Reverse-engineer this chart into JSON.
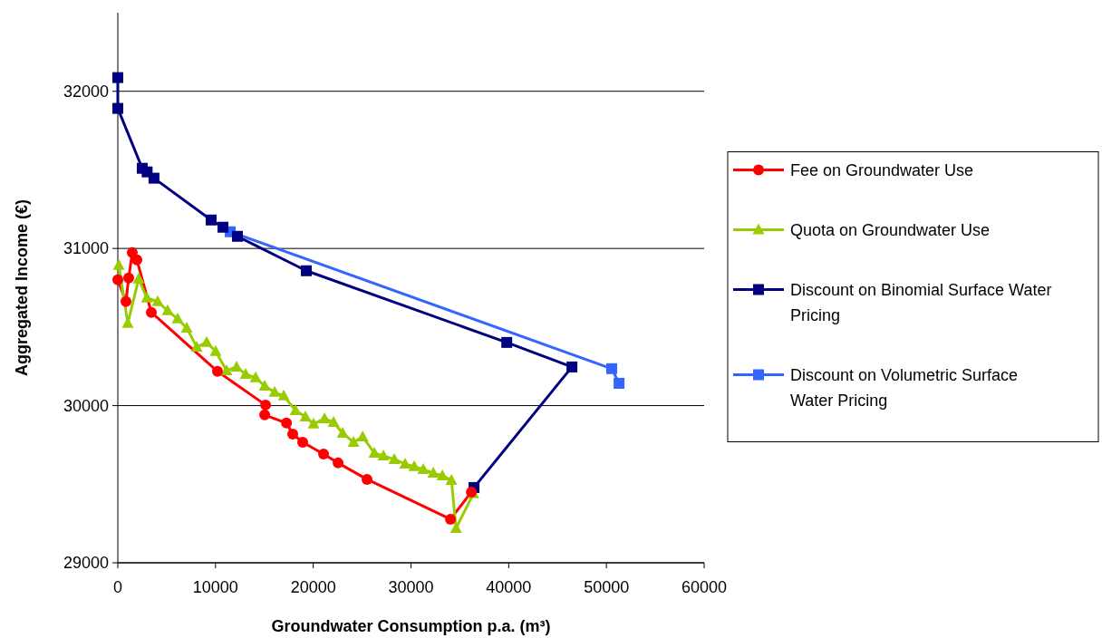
{
  "chart_data": {
    "type": "line",
    "xlabel": "Groundwater Consumption p.a. (m³)",
    "ylabel": "Aggregated Income (€)",
    "xlim": [
      0,
      60000
    ],
    "xticks": [
      0,
      10000,
      20000,
      30000,
      40000,
      50000,
      60000
    ],
    "ylim": [
      29000,
      32500
    ],
    "yticks": [
      29000,
      30000,
      31000,
      32000
    ],
    "grid": "y",
    "legend": "right",
    "line_style": "solid",
    "series": [
      {
        "name": "Fee on Groundwater Use",
        "color": "#ff0000",
        "marker": "circle",
        "x": [
          0,
          835,
          1110,
          1480,
          1950,
          3430,
          10200,
          15120,
          15030,
          17260,
          17900,
          18920,
          21050,
          22540,
          25500,
          34040,
          36180
        ],
        "values": [
          30800,
          30662,
          30812,
          30973,
          30927,
          30593,
          30218,
          30004,
          29941,
          29889,
          29819,
          29767,
          29692,
          29635,
          29531,
          29277,
          29450
        ]
      },
      {
        "name": "Quota on Groundwater Use",
        "color": "#99cc00",
        "marker": "triangle",
        "x": [
          100,
          1020,
          2130,
          2970,
          4080,
          5100,
          6120,
          7050,
          8070,
          9090,
          10010,
          11130,
          12150,
          13080,
          14100,
          15030,
          16050,
          16980,
          18180,
          19200,
          20030,
          21150,
          22080,
          23010,
          24120,
          25050,
          26250,
          27180,
          28290,
          29400,
          30330,
          31260,
          32280,
          33210,
          34140,
          34610,
          36380
        ],
        "values": [
          30893,
          30523,
          30806,
          30685,
          30662,
          30604,
          30552,
          30494,
          30373,
          30402,
          30345,
          30223,
          30246,
          30200,
          30177,
          30125,
          30085,
          30062,
          29969,
          29929,
          29883,
          29917,
          29894,
          29825,
          29767,
          29802,
          29698,
          29681,
          29658,
          29629,
          29612,
          29594,
          29571,
          29554,
          29525,
          29219,
          29439
        ]
      },
      {
        "name": "Discount on Binomial Surface Water Pricing",
        "color": "#000080",
        "marker": "square",
        "x": [
          0,
          0,
          2500,
          3000,
          3700,
          9550,
          10760,
          12240,
          19290,
          39800,
          46470,
          36450
        ],
        "values": [
          32087,
          31891,
          31510,
          31487,
          31447,
          31181,
          31135,
          31077,
          30858,
          30402,
          30246,
          29479
        ]
      },
      {
        "name": "Discount on Volumetric Surface Water Pricing",
        "color": "#3366ff",
        "marker": "square",
        "x": [
          11500,
          50540,
          51290
        ],
        "values": [
          31106,
          30235,
          30142
        ]
      }
    ]
  }
}
